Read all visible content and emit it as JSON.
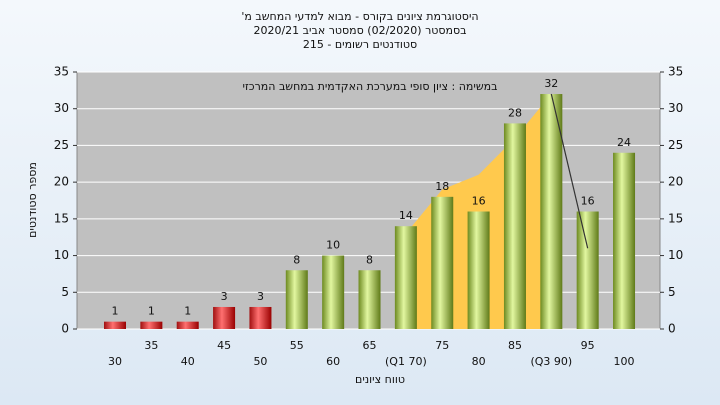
{
  "chart_data": {
    "type": "bar",
    "title": [
      "היסטוגרמת ציונים בקורס - מבוא למדעי המחשב מ'",
      "בסמסטר  (02/2020)  סמסטר אביב 2020/21",
      "סטודנטים רשומים - 215"
    ],
    "annotation": "במשימה : ציון סופי במערכת האקדמית במחשב המרכזי",
    "x_label": "טווח ציונים",
    "y_label": "מספר סטודנטים",
    "categories": [
      "30",
      "35",
      "40",
      "45",
      "50",
      "55",
      "60",
      "65",
      "(Q1 70)",
      "75",
      "80",
      "85",
      "(Q3 90)",
      "95",
      "100"
    ],
    "values": [
      1,
      1,
      1,
      3,
      3,
      8,
      10,
      8,
      14,
      18,
      16,
      28,
      32,
      16,
      24
    ],
    "colors": [
      "red",
      "red",
      "red",
      "red",
      "red",
      "green",
      "green",
      "green",
      "green",
      "green",
      "green",
      "green",
      "green",
      "green",
      "green"
    ],
    "overlay": {
      "color": "#ffc94d",
      "values": [
        null,
        null,
        null,
        null,
        null,
        null,
        null,
        null,
        13,
        19,
        21,
        26,
        32,
        null,
        null
      ]
    },
    "overlay_line": {
      "color": "#333333",
      "values": [
        null,
        null,
        null,
        null,
        null,
        null,
        null,
        null,
        null,
        null,
        null,
        null,
        32,
        11,
        null
      ]
    },
    "ylim": [
      0,
      35
    ],
    "yticks": [
      0,
      5,
      10,
      15,
      20,
      25,
      30,
      35
    ],
    "y2lim": [
      0,
      35
    ],
    "y2ticks": [
      0,
      5,
      10,
      15,
      20,
      25,
      30,
      35
    ],
    "grid": true
  }
}
